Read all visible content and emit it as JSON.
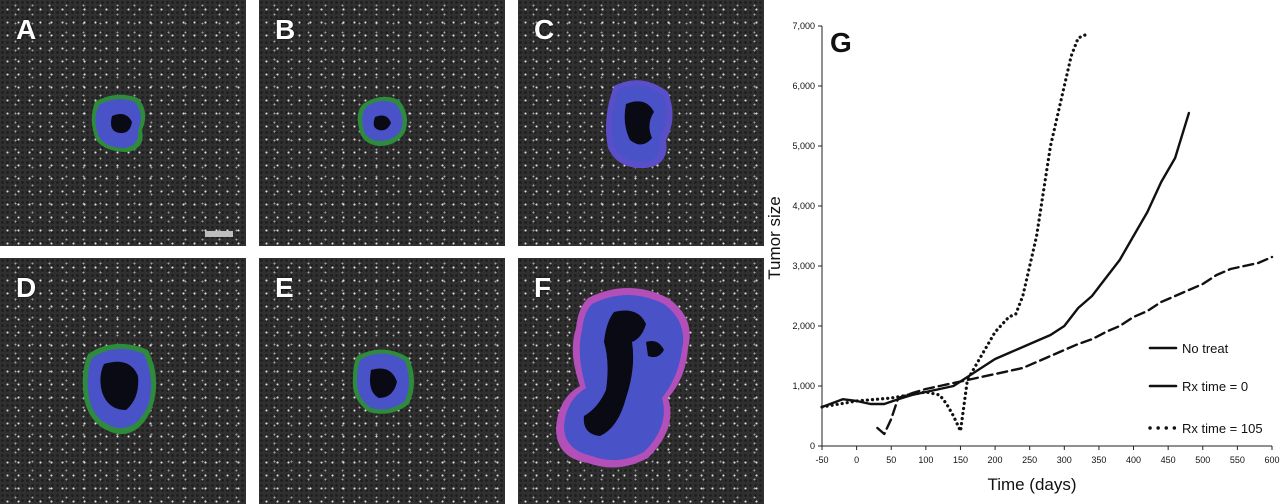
{
  "panels": [
    {
      "label": "A"
    },
    {
      "label": "B"
    },
    {
      "label": "C"
    },
    {
      "label": "D"
    },
    {
      "label": "E"
    },
    {
      "label": "F"
    }
  ],
  "colors": {
    "tumor_outer": "#2e8b3c",
    "tumor_mid": "#4a52c8",
    "tumor_core": "#0a0a14",
    "tumor_pink": "#b24fb8",
    "background": "#303030"
  },
  "chart_data": {
    "type": "line",
    "panel_label": "G",
    "xlabel": "Time (days)",
    "ylabel": "Tumor size",
    "xlim": [
      -50,
      600
    ],
    "ylim": [
      0,
      7000
    ],
    "xticks": [
      "-50",
      "0",
      "50",
      "100",
      "150",
      "200",
      "250",
      "300",
      "350",
      "400",
      "450",
      "500",
      "550",
      "600"
    ],
    "yticks": [
      "0",
      "1,000",
      "2,000",
      "3,000",
      "4,000",
      "5,000",
      "6,000",
      "7,000"
    ],
    "grid": false,
    "legend_position": "bottom-right",
    "series": [
      {
        "name": "No treat",
        "style": "solid",
        "x": [
          -50,
          -20,
          0,
          20,
          40,
          60,
          80,
          100,
          120,
          140,
          160,
          180,
          200,
          220,
          240,
          260,
          280,
          300,
          320,
          340,
          360,
          380,
          400,
          420,
          440,
          460,
          480
        ],
        "y": [
          650,
          780,
          750,
          700,
          700,
          780,
          850,
          900,
          950,
          1000,
          1150,
          1300,
          1450,
          1550,
          1650,
          1750,
          1850,
          2000,
          2300,
          2500,
          2800,
          3100,
          3500,
          3900,
          4400,
          4800,
          5550
        ]
      },
      {
        "name": "Rx time = 0",
        "style": "dashed",
        "x": [
          30,
          40,
          50,
          60,
          80,
          100,
          120,
          140,
          160,
          180,
          200,
          220,
          240,
          260,
          280,
          300,
          320,
          340,
          360,
          380,
          400,
          420,
          440,
          460,
          480,
          500,
          520,
          540,
          560,
          580,
          600
        ],
        "y": [
          300,
          200,
          450,
          800,
          880,
          950,
          1000,
          1050,
          1100,
          1150,
          1200,
          1250,
          1300,
          1400,
          1500,
          1600,
          1700,
          1780,
          1900,
          2000,
          2150,
          2250,
          2400,
          2500,
          2600,
          2700,
          2850,
          2950,
          3000,
          3050,
          3150
        ]
      },
      {
        "name": "Rx time = 105",
        "style": "dotted",
        "x": [
          -50,
          0,
          50,
          100,
          120,
          130,
          140,
          150,
          160,
          180,
          200,
          220,
          230,
          240,
          260,
          280,
          300,
          310,
          320,
          330
        ],
        "y": [
          650,
          750,
          800,
          900,
          850,
          700,
          500,
          250,
          1100,
          1500,
          1900,
          2150,
          2200,
          2500,
          3500,
          5000,
          6000,
          6500,
          6800,
          6850
        ]
      }
    ]
  }
}
